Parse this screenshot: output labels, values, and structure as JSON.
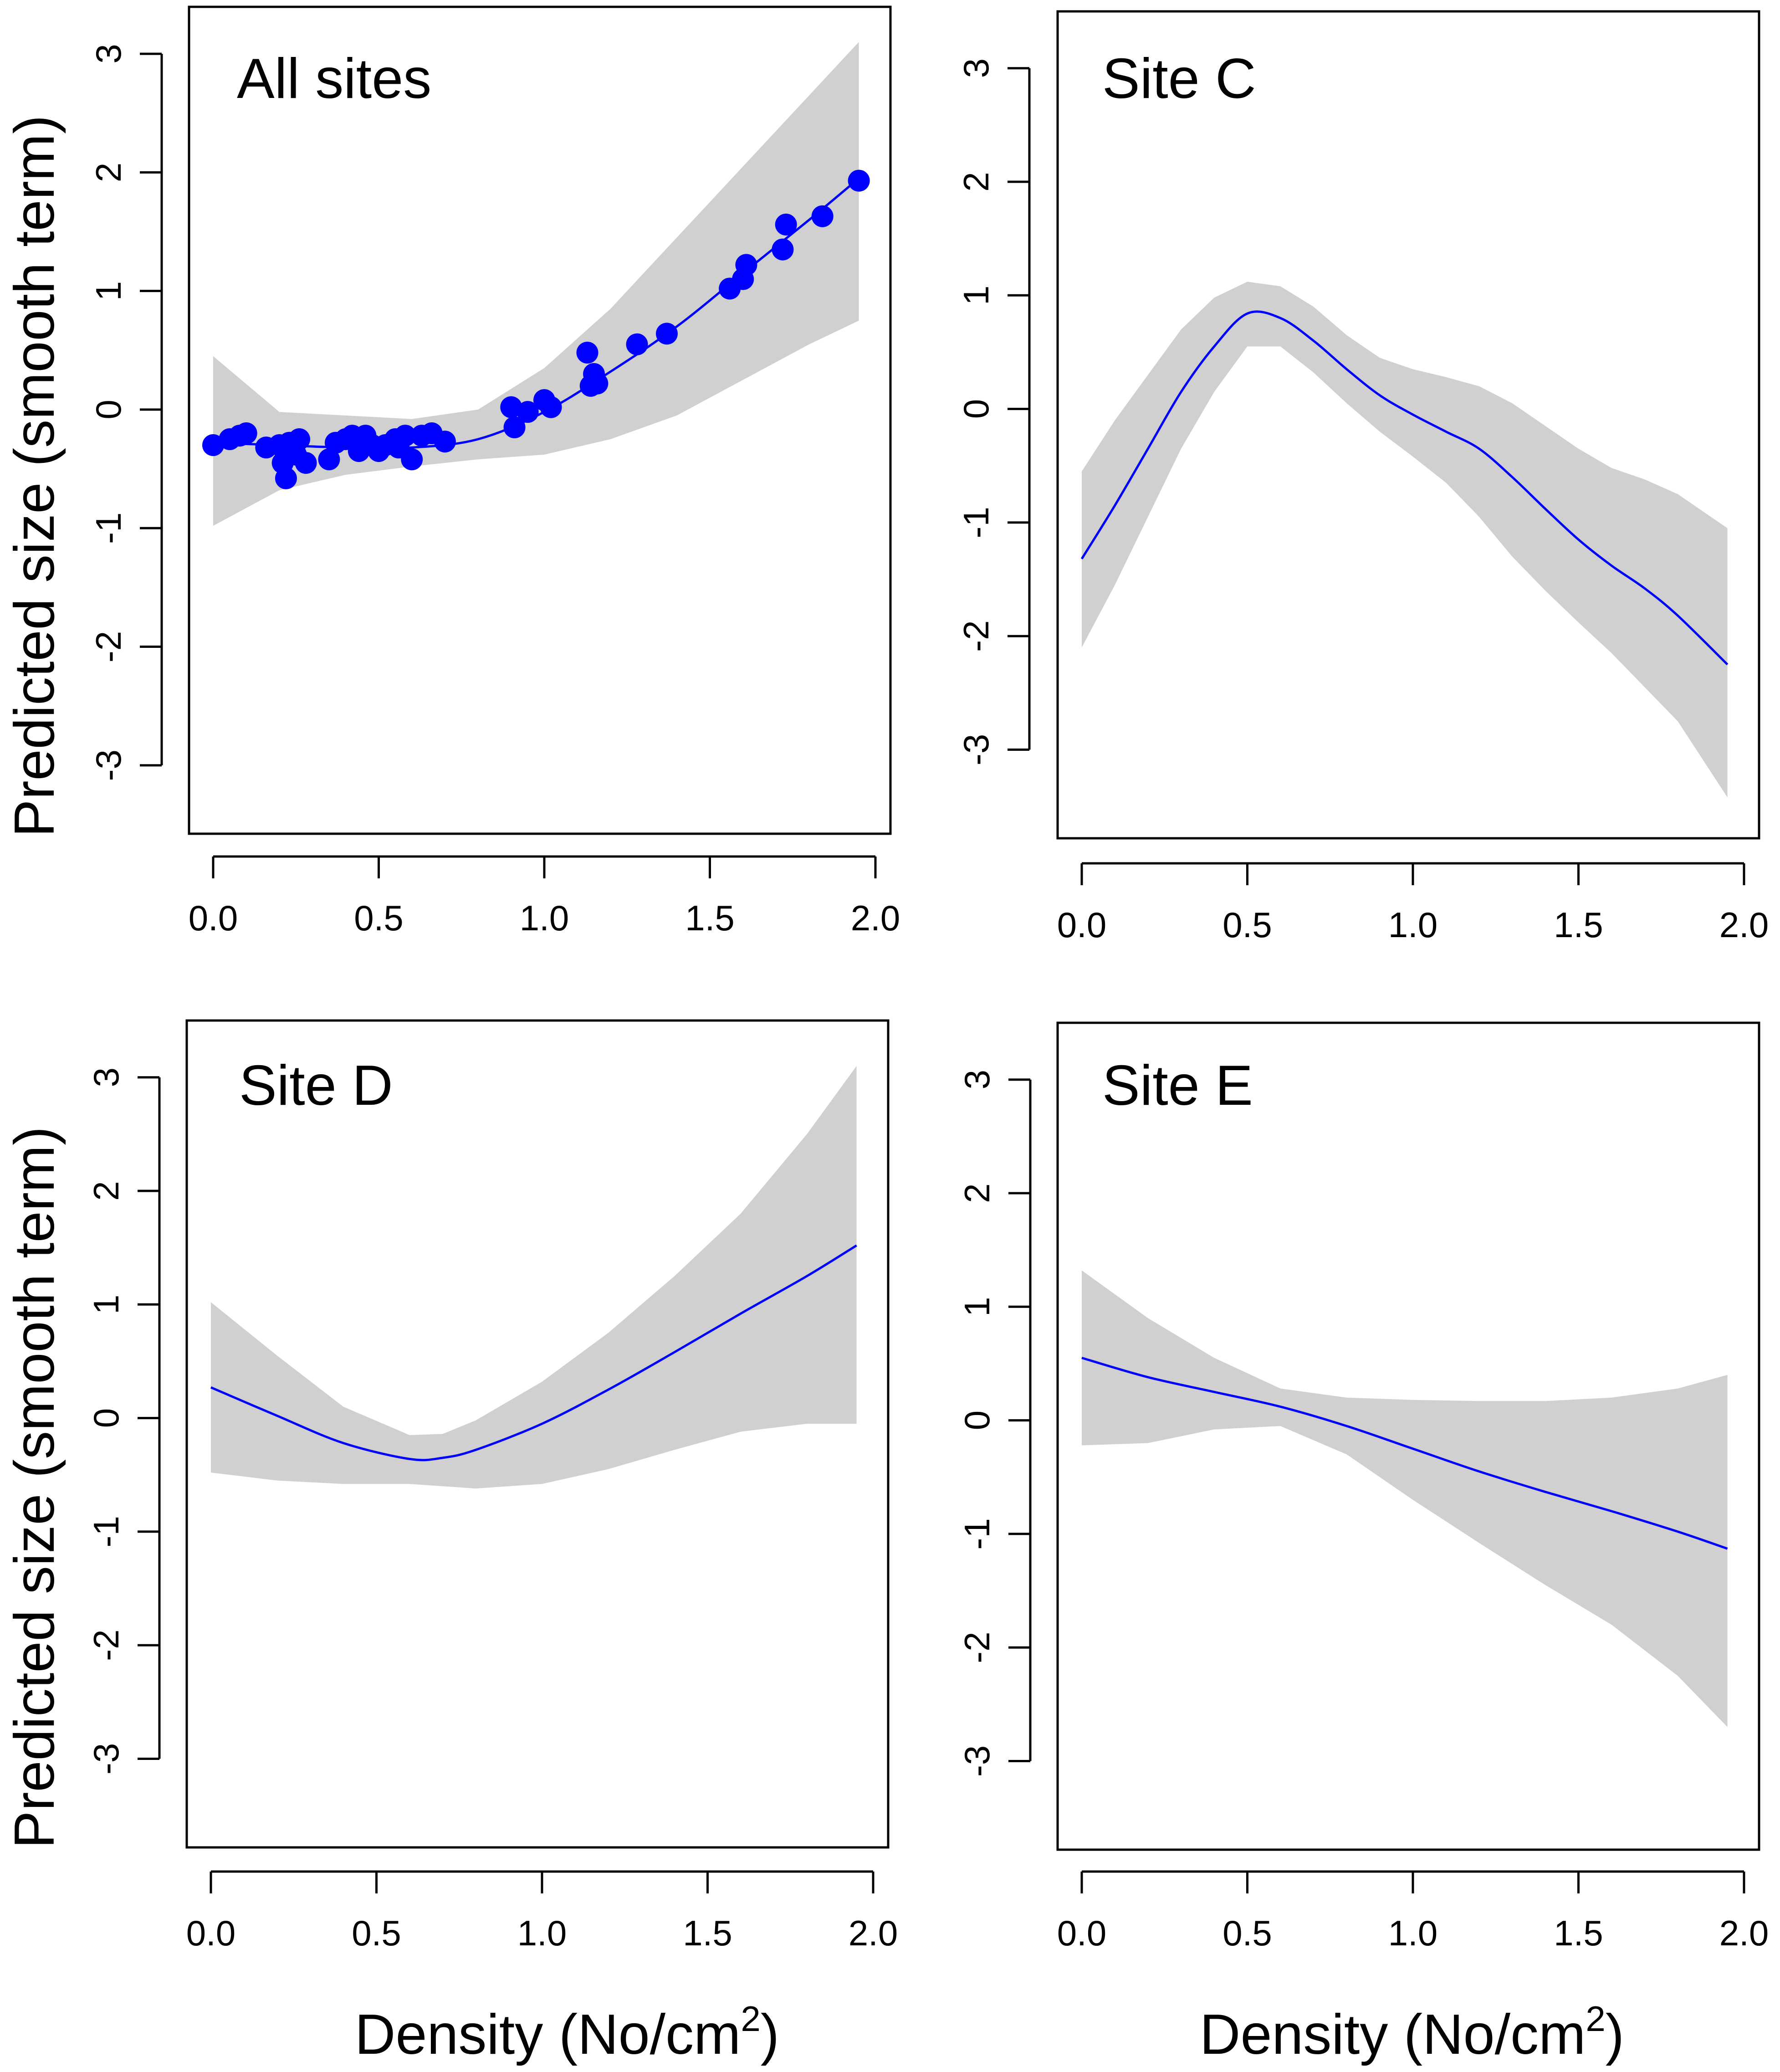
{
  "figure": {
    "y_axis_label": "Predicted size (smooth term)",
    "x_axis_label_main": "Density (No/cm",
    "x_axis_label_sup": "2",
    "x_axis_label_end": ")"
  },
  "colors": {
    "line": "#0000ff",
    "band": "#d0d0d0",
    "points": "#0000ff",
    "axis": "#000000"
  },
  "chart_data": [
    {
      "type": "line",
      "title": "All sites",
      "xlabel": "Density (No/cm2)",
      "ylabel": "Predicted size (smooth term)",
      "xlim": [
        0,
        2
      ],
      "ylim": [
        -3.5,
        3.3
      ],
      "xticks": [
        "0.0",
        "0.5",
        "1.0",
        "1.5",
        "2.0"
      ],
      "yticks": [
        "-3",
        "-2",
        "-1",
        "0",
        "1",
        "2",
        "3"
      ],
      "series": [
        {
          "name": "smooth",
          "x": [
            0,
            0.2,
            0.4,
            0.6,
            0.8,
            1.0,
            1.2,
            1.4,
            1.6,
            1.8,
            1.95
          ],
          "values": [
            -0.28,
            -0.3,
            -0.32,
            -0.32,
            -0.25,
            -0.02,
            0.32,
            0.7,
            1.15,
            1.6,
            1.95
          ]
        },
        {
          "name": "upper",
          "x": [
            0,
            0.2,
            0.4,
            0.6,
            0.8,
            1.0,
            1.2,
            1.4,
            1.6,
            1.8,
            1.95
          ],
          "values": [
            0.45,
            -0.02,
            -0.05,
            -0.08,
            0.0,
            0.35,
            0.85,
            1.45,
            2.05,
            2.65,
            3.1
          ]
        },
        {
          "name": "lower",
          "x": [
            0,
            0.2,
            0.4,
            0.6,
            0.8,
            1.0,
            1.2,
            1.4,
            1.6,
            1.8,
            1.95
          ],
          "values": [
            -0.98,
            -0.68,
            -0.55,
            -0.48,
            -0.42,
            -0.38,
            -0.25,
            -0.05,
            0.25,
            0.55,
            0.75
          ]
        }
      ],
      "points": {
        "x": [
          0.0,
          0.05,
          0.08,
          0.1,
          0.16,
          0.2,
          0.21,
          0.22,
          0.23,
          0.25,
          0.26,
          0.28,
          0.35,
          0.37,
          0.4,
          0.42,
          0.44,
          0.45,
          0.46,
          0.48,
          0.5,
          0.52,
          0.55,
          0.56,
          0.58,
          0.6,
          0.63,
          0.66,
          0.7,
          0.9,
          0.91,
          0.95,
          1.0,
          1.02,
          1.13,
          1.14,
          1.15,
          1.16,
          1.28,
          1.37,
          1.56,
          1.6,
          1.61,
          1.72,
          1.73,
          1.84,
          1.95
        ],
        "y": [
          -0.3,
          -0.25,
          -0.22,
          -0.2,
          -0.32,
          -0.3,
          -0.45,
          -0.58,
          -0.28,
          -0.38,
          -0.25,
          -0.45,
          -0.42,
          -0.28,
          -0.25,
          -0.22,
          -0.35,
          -0.28,
          -0.22,
          -0.3,
          -0.35,
          -0.3,
          -0.25,
          -0.32,
          -0.22,
          -0.42,
          -0.22,
          -0.2,
          -0.27,
          0.02,
          -0.15,
          -0.02,
          0.08,
          0.02,
          0.48,
          0.2,
          0.3,
          0.22,
          0.55,
          0.64,
          1.02,
          1.1,
          1.22,
          1.35,
          1.56,
          1.63,
          1.93
        ]
      }
    },
    {
      "type": "line",
      "title": "Site C",
      "xlabel": "Density (No/cm2)",
      "ylabel": "Predicted size (smooth term)",
      "xlim": [
        0,
        2
      ],
      "ylim": [
        -3.7,
        3.4
      ],
      "xticks": [
        "0.0",
        "0.5",
        "1.0",
        "1.5",
        "2.0"
      ],
      "yticks": [
        "-3",
        "-2",
        "-1",
        "0",
        "1",
        "2",
        "3"
      ],
      "series": [
        {
          "name": "smooth",
          "x": [
            0,
            0.1,
            0.2,
            0.3,
            0.4,
            0.5,
            0.6,
            0.7,
            0.8,
            0.9,
            1.0,
            1.1,
            1.2,
            1.3,
            1.4,
            1.5,
            1.6,
            1.7,
            1.8,
            1.95
          ],
          "values": [
            -1.32,
            -0.85,
            -0.35,
            0.15,
            0.55,
            0.84,
            0.8,
            0.6,
            0.35,
            0.12,
            -0.05,
            -0.2,
            -0.35,
            -0.6,
            -0.88,
            -1.15,
            -1.38,
            -1.58,
            -1.82,
            -2.25
          ]
        },
        {
          "name": "upper",
          "x": [
            0,
            0.1,
            0.2,
            0.3,
            0.4,
            0.5,
            0.6,
            0.7,
            0.8,
            0.9,
            1.0,
            1.1,
            1.2,
            1.3,
            1.4,
            1.5,
            1.6,
            1.7,
            1.8,
            1.95
          ],
          "values": [
            -0.55,
            -0.1,
            0.3,
            0.7,
            0.98,
            1.12,
            1.08,
            0.9,
            0.65,
            0.45,
            0.35,
            0.28,
            0.2,
            0.05,
            -0.15,
            -0.35,
            -0.52,
            -0.62,
            -0.75,
            -1.05
          ]
        },
        {
          "name": "lower",
          "x": [
            0,
            0.1,
            0.2,
            0.3,
            0.4,
            0.5,
            0.6,
            0.7,
            0.8,
            0.9,
            1.0,
            1.1,
            1.2,
            1.3,
            1.4,
            1.5,
            1.6,
            1.7,
            1.8,
            1.95
          ],
          "values": [
            -2.1,
            -1.55,
            -0.95,
            -0.35,
            0.15,
            0.55,
            0.55,
            0.32,
            0.05,
            -0.2,
            -0.42,
            -0.65,
            -0.95,
            -1.3,
            -1.6,
            -1.88,
            -2.15,
            -2.45,
            -2.75,
            -3.42
          ]
        }
      ]
    },
    {
      "type": "line",
      "title": "Site D",
      "xlabel": "Density (No/cm2)",
      "ylabel": "Predicted size (smooth term)",
      "xlim": [
        0,
        2
      ],
      "ylim": [
        -3.7,
        3.4
      ],
      "xticks": [
        "0.0",
        "0.5",
        "1.0",
        "1.5",
        "2.0"
      ],
      "yticks": [
        "-3",
        "-2",
        "-1",
        "0",
        "1",
        "2",
        "3"
      ],
      "series": [
        {
          "name": "smooth",
          "x": [
            0,
            0.2,
            0.4,
            0.6,
            0.7,
            0.8,
            1.0,
            1.2,
            1.4,
            1.6,
            1.8,
            1.95
          ],
          "values": [
            0.27,
            0.02,
            -0.22,
            -0.36,
            -0.35,
            -0.28,
            -0.05,
            0.25,
            0.58,
            0.92,
            1.25,
            1.52
          ]
        },
        {
          "name": "upper",
          "x": [
            0,
            0.2,
            0.4,
            0.6,
            0.7,
            0.8,
            1.0,
            1.2,
            1.4,
            1.6,
            1.8,
            1.95
          ],
          "values": [
            1.02,
            0.55,
            0.1,
            -0.15,
            -0.14,
            -0.02,
            0.32,
            0.75,
            1.25,
            1.8,
            2.5,
            3.1
          ]
        },
        {
          "name": "lower",
          "x": [
            0,
            0.2,
            0.4,
            0.6,
            0.7,
            0.8,
            1.0,
            1.2,
            1.4,
            1.6,
            1.8,
            1.95
          ],
          "values": [
            -0.48,
            -0.55,
            -0.58,
            -0.58,
            -0.6,
            -0.62,
            -0.58,
            -0.45,
            -0.28,
            -0.12,
            -0.05,
            -0.05
          ]
        }
      ]
    },
    {
      "type": "line",
      "title": "Site E",
      "xlabel": "Density (No/cm2)",
      "ylabel": "Predicted size (smooth term)",
      "xlim": [
        0,
        2
      ],
      "ylim": [
        -3.7,
        3.4
      ],
      "xticks": [
        "0.0",
        "0.5",
        "1.0",
        "1.5",
        "2.0"
      ],
      "yticks": [
        "-3",
        "-2",
        "-1",
        "0",
        "1",
        "2",
        "3"
      ],
      "series": [
        {
          "name": "smooth",
          "x": [
            0,
            0.2,
            0.4,
            0.6,
            0.8,
            1.0,
            1.2,
            1.4,
            1.6,
            1.8,
            1.95
          ],
          "values": [
            0.55,
            0.38,
            0.25,
            0.12,
            -0.05,
            -0.25,
            -0.45,
            -0.63,
            -0.8,
            -0.98,
            -1.13
          ]
        },
        {
          "name": "upper",
          "x": [
            0,
            0.2,
            0.4,
            0.6,
            0.8,
            1.0,
            1.2,
            1.4,
            1.6,
            1.8,
            1.95
          ],
          "values": [
            1.32,
            0.9,
            0.55,
            0.28,
            0.2,
            0.18,
            0.17,
            0.17,
            0.2,
            0.28,
            0.4
          ]
        },
        {
          "name": "lower",
          "x": [
            0,
            0.2,
            0.4,
            0.6,
            0.8,
            1.0,
            1.2,
            1.4,
            1.6,
            1.8,
            1.95
          ],
          "values": [
            -0.22,
            -0.2,
            -0.08,
            -0.05,
            -0.3,
            -0.7,
            -1.08,
            -1.45,
            -1.8,
            -2.25,
            -2.7
          ]
        }
      ]
    }
  ]
}
